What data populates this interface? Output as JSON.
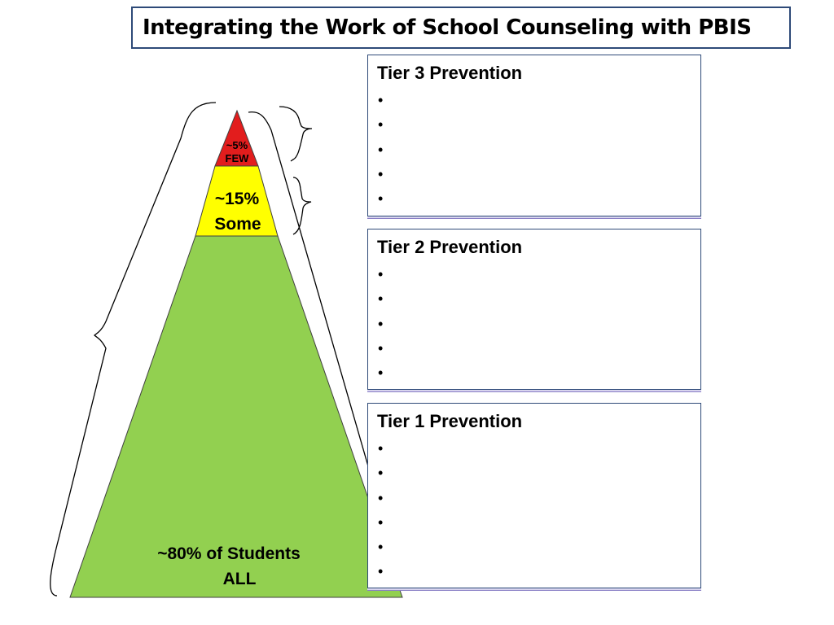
{
  "title": "Integrating the Work of School Counseling with PBIS",
  "pyramid": {
    "top": {
      "line1": "~5%",
      "line2": "FEW",
      "color": "#e21d1d"
    },
    "middle": {
      "line1": "~15%",
      "line2": "Some",
      "color": "#ffff00"
    },
    "bottom": {
      "line1": "~80% of Students",
      "line2": "ALL",
      "color": "#92d050"
    }
  },
  "tiers": [
    {
      "label": "Tier 3 Prevention",
      "bullets": [
        "",
        "",
        "",
        "",
        ""
      ]
    },
    {
      "label": "Tier 2 Prevention",
      "bullets": [
        "",
        "",
        "",
        "",
        ""
      ]
    },
    {
      "label": "Tier 1 Prevention",
      "bullets": [
        "",
        "",
        "",
        "",
        "",
        ""
      ]
    }
  ],
  "colors": {
    "border": "#2e4a78",
    "shadow": "#8a7fc6"
  }
}
